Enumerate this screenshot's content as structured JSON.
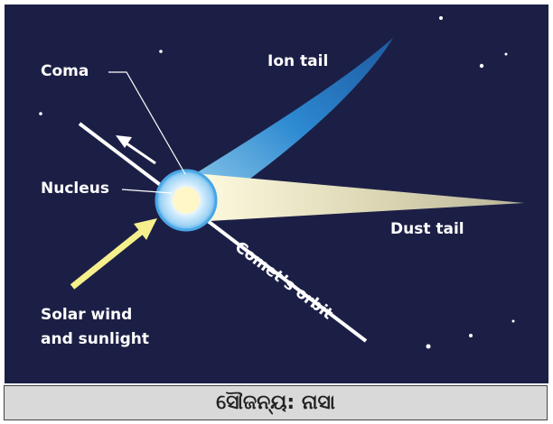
{
  "labels": {
    "coma": "Coma",
    "ion_tail": "Ion tail",
    "nucleus": "Nucleus",
    "dust_tail": "Dust tail",
    "orbit": "Comet’s orbit",
    "solar_wind": [
      "Solar wind",
      "and sunlight"
    ]
  },
  "caption": "ସୌଜନ୍ୟ: ନାସା"
}
